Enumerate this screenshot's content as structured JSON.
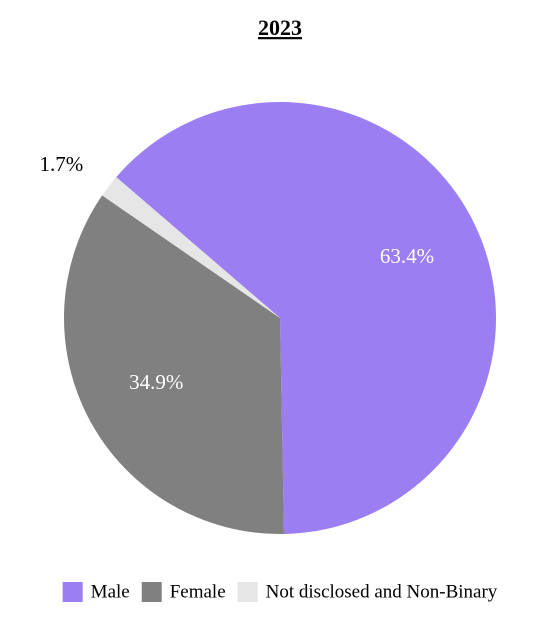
{
  "chart_data": {
    "type": "pie",
    "title": "2023",
    "categories": [
      "Male",
      "Female",
      "Not disclosed and Non-Binary"
    ],
    "values": [
      63.4,
      34.9,
      1.7
    ],
    "value_labels": [
      "63.4%",
      "34.9%",
      "1.7%"
    ],
    "colors": [
      "#9b7ef2",
      "#808080",
      "#e6e6e6"
    ],
    "legend": "bottom"
  }
}
